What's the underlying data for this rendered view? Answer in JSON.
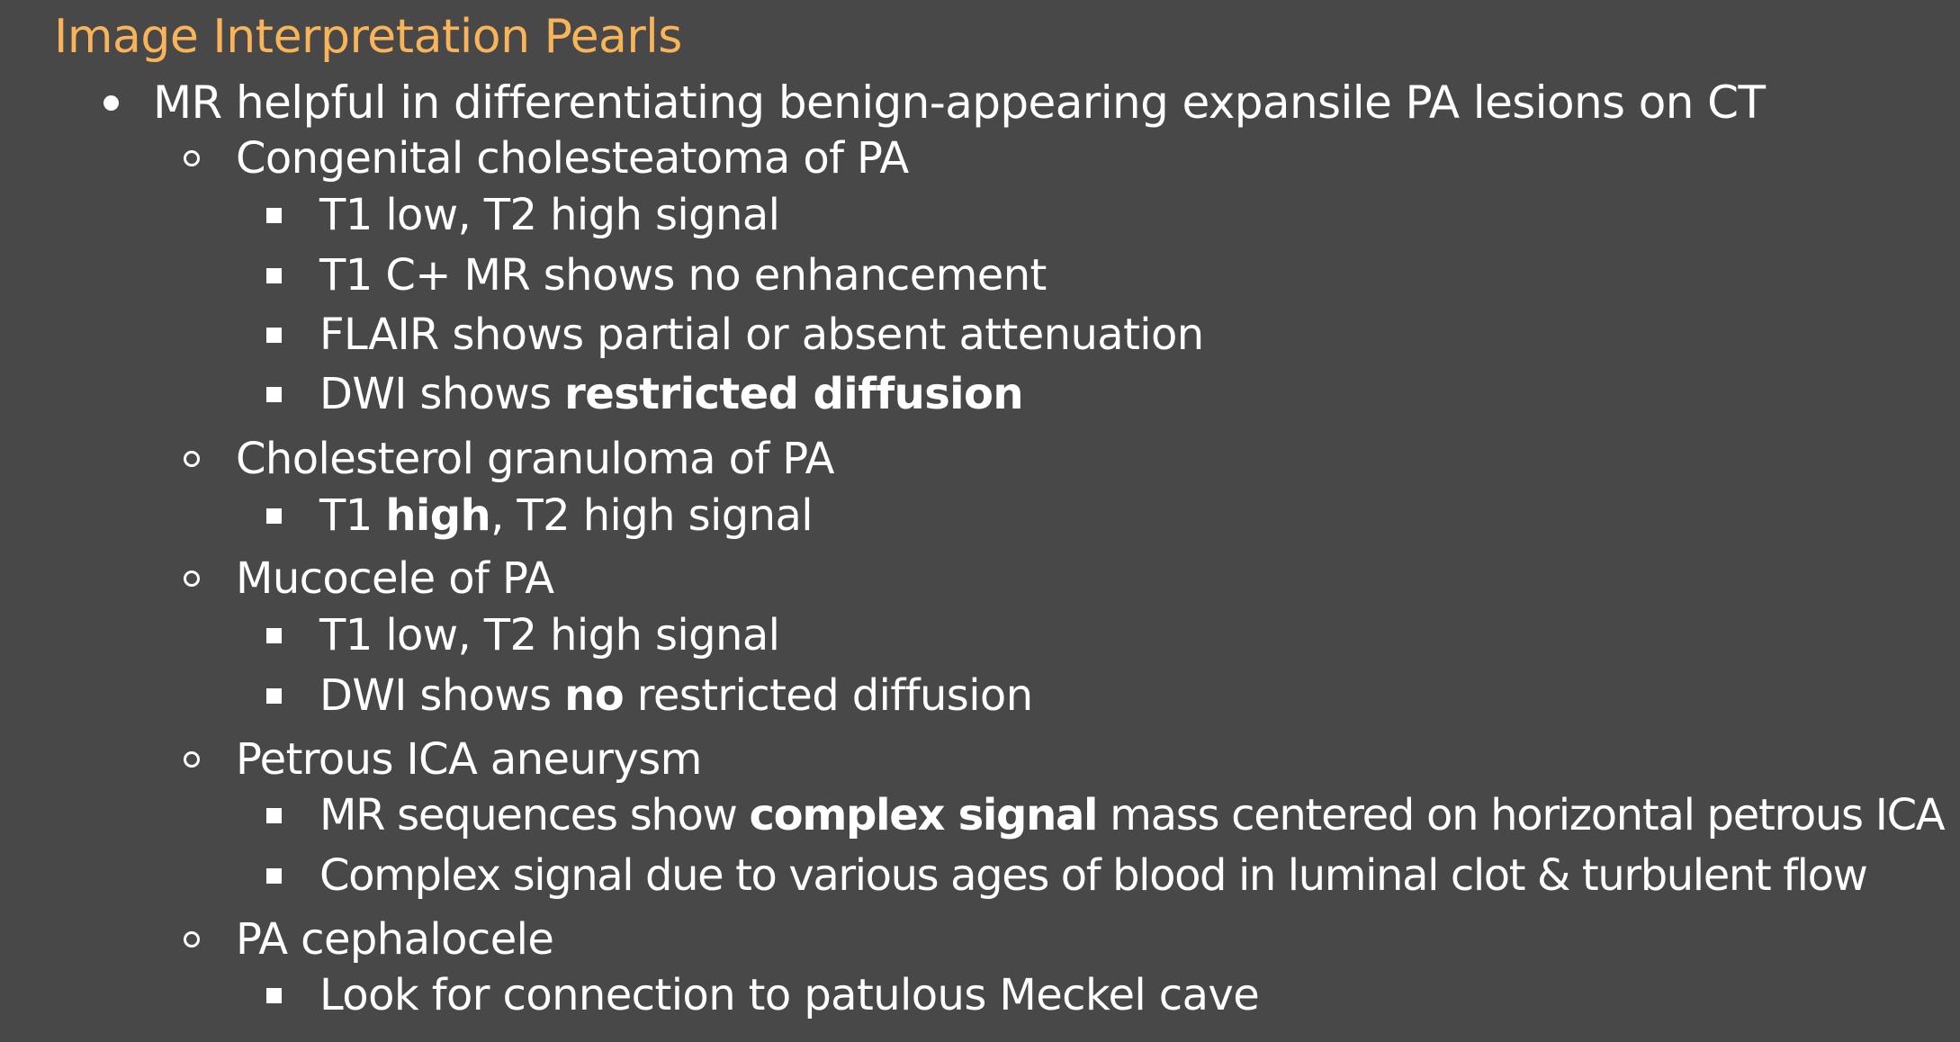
{
  "title": "Image Interpretation Pearls",
  "items": {
    "l1": "MR helpful in differentiating benign-appearing expansile PA lesions on CT",
    "cong": {
      "label": "Congenital cholesteatoma of PA",
      "s1": "T1 low, T2 high signal",
      "s2": "T1 C+ MR shows no enhancement",
      "s3": "FLAIR shows partial or absent attenuation",
      "s4_pre": "DWI shows ",
      "s4_bold": "restricted diffusion"
    },
    "chol": {
      "label": "Cholesterol granuloma of PA",
      "s1_pre": "T1 ",
      "s1_bold": "high",
      "s1_post": ", T2 high signal"
    },
    "muco": {
      "label": "Mucocele of PA",
      "s1": "T1 low, T2 high signal",
      "s2_pre": "DWI shows ",
      "s2_bold": "no",
      "s2_post": " restricted diffusion"
    },
    "ica": {
      "label": "Petrous ICA aneurysm",
      "s1_pre": "MR sequences show ",
      "s1_bold": "complex signal",
      "s1_post": " mass centered on horizontal petrous ICA",
      "s2": "Complex signal due to various ages of blood in luminal clot & turbulent flow"
    },
    "ceph": {
      "label": "PA cephalocele",
      "s1": "Look for connection to patulous Meckel cave"
    }
  }
}
